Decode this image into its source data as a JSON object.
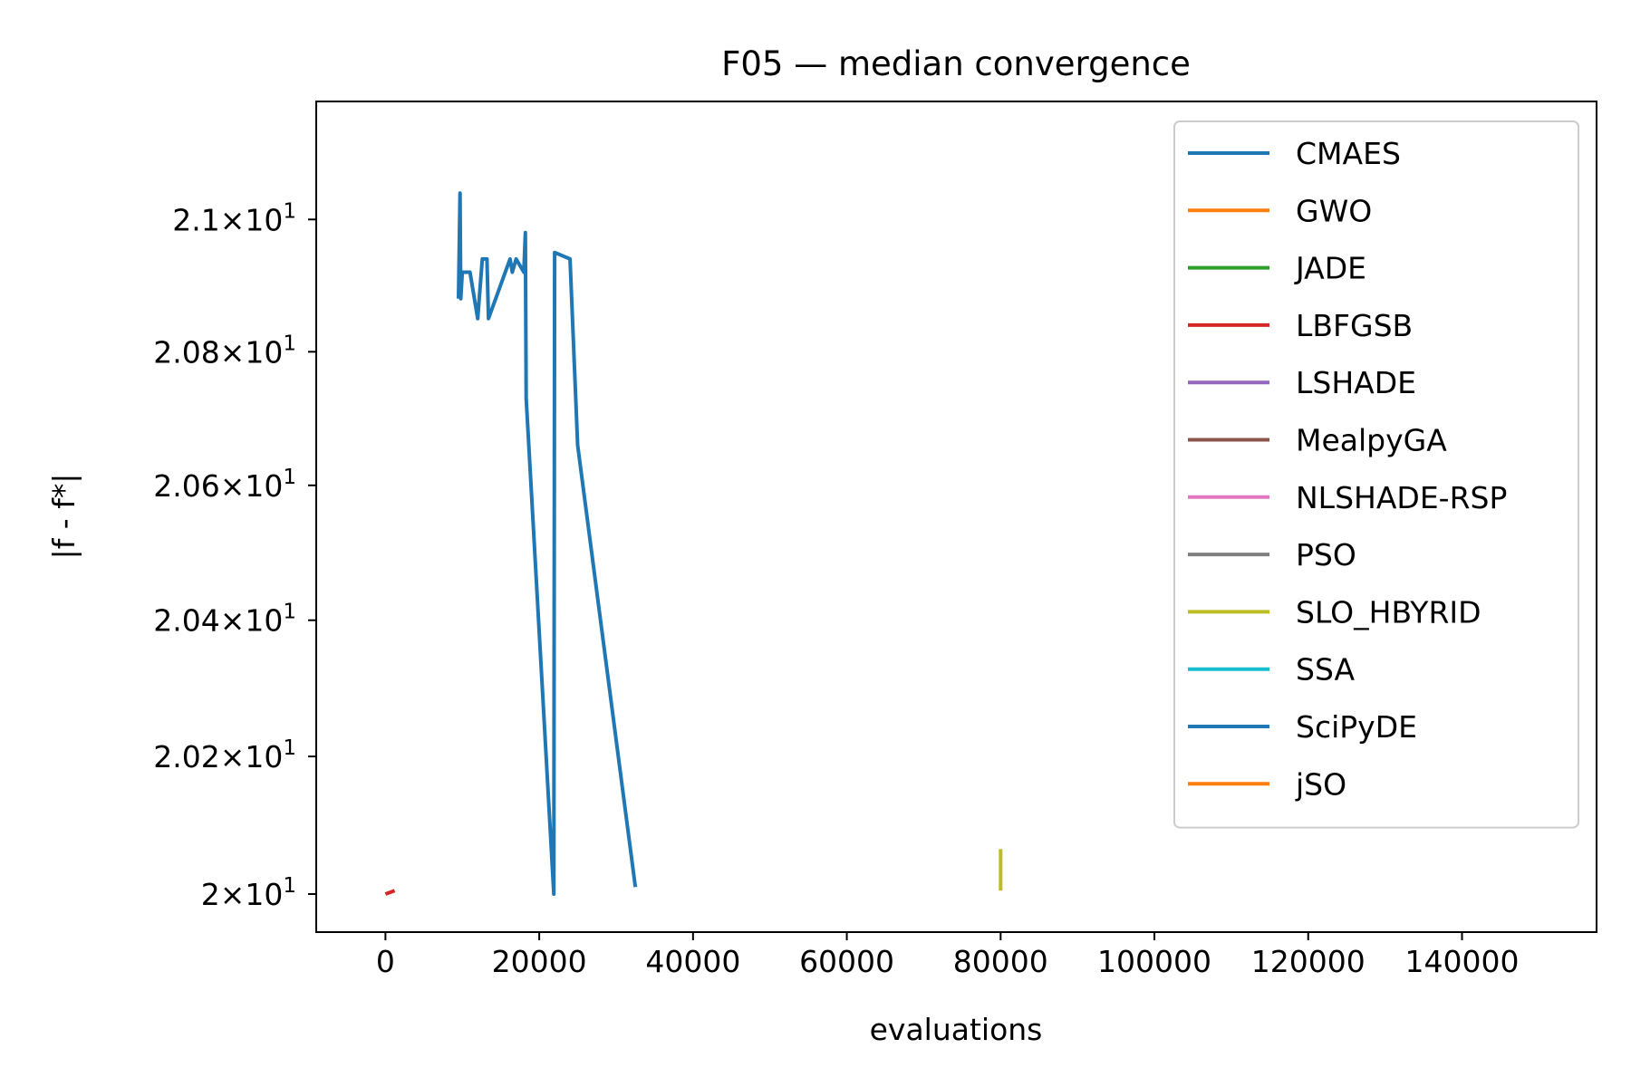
{
  "chart_data": {
    "type": "line",
    "title": "F05 — median convergence",
    "xlabel": "evaluations",
    "ylabel": "|f - f*|",
    "xlim": [
      -9000,
      157500
    ],
    "ylim": [
      19.945,
      21.18
    ],
    "yscale": "log",
    "x_ticks": [
      {
        "value": 0,
        "label": "0"
      },
      {
        "value": 20000,
        "label": "20000"
      },
      {
        "value": 40000,
        "label": "40000"
      },
      {
        "value": 60000,
        "label": "60000"
      },
      {
        "value": 80000,
        "label": "80000"
      },
      {
        "value": 100000,
        "label": "100000"
      },
      {
        "value": 120000,
        "label": "120000"
      },
      {
        "value": 140000,
        "label": "140000"
      }
    ],
    "y_ticks": [
      {
        "value": 20.0,
        "mantissa": "2",
        "base": "10",
        "exp": "1"
      },
      {
        "value": 20.2,
        "mantissa": "2.02",
        "base": "10",
        "exp": "1"
      },
      {
        "value": 20.4,
        "mantissa": "2.04",
        "base": "10",
        "exp": "1"
      },
      {
        "value": 20.6,
        "mantissa": "2.06",
        "base": "10",
        "exp": "1"
      },
      {
        "value": 20.8,
        "mantissa": "2.08",
        "base": "10",
        "exp": "1"
      },
      {
        "value": 21.0,
        "mantissa": "2.1",
        "base": "10",
        "exp": "1"
      }
    ],
    "grid": false,
    "legend_position": "top-right",
    "series": [
      {
        "name": "CMAES",
        "color": "#1f77b4",
        "x": [
          9500,
          9700,
          9800,
          10000,
          11000,
          12000,
          12600,
          13200,
          13400,
          16200,
          16500,
          17000,
          18000,
          18200,
          18300,
          21900,
          22000,
          24000,
          25000,
          32500
        ],
        "y": [
          20.88,
          21.04,
          20.88,
          20.92,
          20.92,
          20.85,
          20.94,
          20.94,
          20.85,
          20.94,
          20.92,
          20.94,
          20.92,
          20.98,
          20.73,
          20.0,
          20.95,
          20.94,
          20.66,
          20.01
        ]
      },
      {
        "name": "GWO",
        "color": "#ff7f0e",
        "x": [],
        "y": []
      },
      {
        "name": "JADE",
        "color": "#2ca02c",
        "x": [],
        "y": []
      },
      {
        "name": "LBFGSB",
        "color": "#d62728",
        "x": [
          0,
          1200
        ],
        "y": [
          20.0,
          20.005
        ]
      },
      {
        "name": "LSHADE",
        "color": "#9467bd",
        "x": [],
        "y": []
      },
      {
        "name": "MealpyGA",
        "color": "#8c564b",
        "x": [],
        "y": []
      },
      {
        "name": "NLSHADE-RSP",
        "color": "#e377c2",
        "x": [],
        "y": []
      },
      {
        "name": "PSO",
        "color": "#7f7f7f",
        "x": [],
        "y": []
      },
      {
        "name": "SLO_HBYRID",
        "color": "#bcbd22",
        "x": [
          80000,
          80000
        ],
        "y": [
          20.005,
          20.065
        ]
      },
      {
        "name": "SSA",
        "color": "#17becf",
        "x": [],
        "y": []
      },
      {
        "name": "SciPyDE",
        "color": "#1f77b4",
        "x": [],
        "y": []
      },
      {
        "name": "jSO",
        "color": "#ff7f0e",
        "x": [],
        "y": []
      }
    ]
  }
}
